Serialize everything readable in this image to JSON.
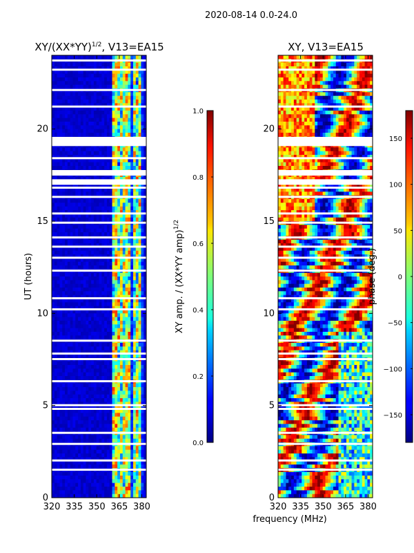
{
  "suptitle": "2020-08-14 0.0-24.0",
  "xlabel": "frequency (MHz)",
  "chart_data": [
    {
      "type": "heatmap",
      "title": "XY/(XX*YY)",
      "title_exp": "1/2",
      "title_suffix": ", V13=EA15",
      "xlabel": "frequency (MHz)",
      "ylabel": "UT (hours)",
      "xlim": [
        320,
        383
      ],
      "ylim": [
        0,
        24
      ],
      "xticks": [
        320,
        335,
        350,
        365,
        380
      ],
      "yticks": [
        0,
        5,
        10,
        15,
        20
      ],
      "colorbar": {
        "label": "XY amp. / (XX*YY amp)",
        "label_exp": "1/2",
        "range": [
          0.0,
          1.0
        ],
        "ticks": [
          "0.0",
          "0.2",
          "0.4",
          "0.6",
          "0.8",
          "1.0"
        ],
        "tick_values": [
          0.0,
          0.2,
          0.4,
          0.6,
          0.8,
          1.0
        ],
        "colormap": "jet"
      },
      "bright_channels_mhz": [
        362,
        364,
        366,
        369,
        371,
        375,
        377,
        379
      ],
      "flagged_ut_hours": [
        1.5,
        2.0,
        2.9,
        3.5,
        4.8,
        5.0,
        6.3,
        7.5,
        7.8,
        8.5,
        10.2,
        10.8,
        12.3,
        13.0,
        13.6,
        14.1,
        14.9,
        15.4,
        16.3,
        16.8,
        17.2,
        17.7,
        18.4,
        19.3,
        19.5,
        21.2,
        22.1,
        23.2,
        23.7
      ]
    },
    {
      "type": "heatmap",
      "title": "XY, V13=EA15",
      "xlabel": "frequency (MHz)",
      "ylabel": "",
      "xlim": [
        320,
        383
      ],
      "ylim": [
        0,
        24
      ],
      "xticks": [
        320,
        335,
        350,
        365,
        380
      ],
      "yticks": [
        0,
        5,
        10,
        15,
        20
      ],
      "colorbar": {
        "label": "phase (deg.)",
        "range": [
          -180,
          180
        ],
        "ticks": [
          "150",
          "100",
          "50",
          "0",
          "−50",
          "−100",
          "−150"
        ],
        "tick_values": [
          150,
          100,
          50,
          0,
          -50,
          -100,
          -150
        ],
        "colormap": "jet"
      },
      "flagged_ut_hours": [
        1.5,
        2.0,
        2.9,
        3.5,
        4.8,
        5.0,
        6.3,
        7.5,
        7.8,
        8.5,
        10.2,
        10.8,
        12.3,
        13.0,
        13.6,
        14.1,
        14.9,
        15.4,
        16.3,
        16.8,
        17.2,
        17.7,
        18.4,
        19.3,
        19.5,
        21.2,
        22.1,
        23.2,
        23.7
      ]
    }
  ]
}
